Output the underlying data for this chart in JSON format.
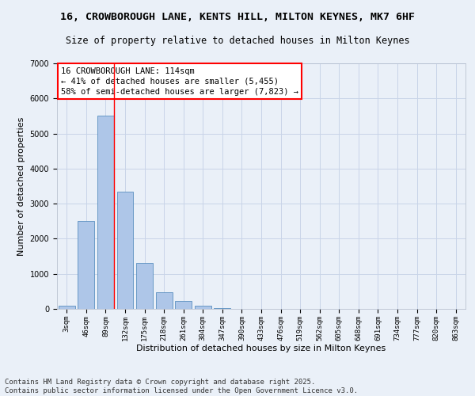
{
  "title_line1": "16, CROWBOROUGH LANE, KENTS HILL, MILTON KEYNES, MK7 6HF",
  "title_line2": "Size of property relative to detached houses in Milton Keynes",
  "xlabel": "Distribution of detached houses by size in Milton Keynes",
  "ylabel": "Number of detached properties",
  "categories": [
    "3sqm",
    "46sqm",
    "89sqm",
    "132sqm",
    "175sqm",
    "218sqm",
    "261sqm",
    "304sqm",
    "347sqm",
    "390sqm",
    "433sqm",
    "476sqm",
    "519sqm",
    "562sqm",
    "605sqm",
    "648sqm",
    "691sqm",
    "734sqm",
    "777sqm",
    "820sqm",
    "863sqm"
  ],
  "values": [
    100,
    2500,
    5500,
    3350,
    1300,
    480,
    220,
    90,
    30,
    0,
    0,
    0,
    0,
    0,
    0,
    0,
    0,
    0,
    0,
    0,
    0
  ],
  "bar_color": "#aec6e8",
  "bar_edge_color": "#5a8fc0",
  "vline_x": 2.43,
  "vline_color": "red",
  "annotation_text": "16 CROWBOROUGH LANE: 114sqm\n← 41% of detached houses are smaller (5,455)\n58% of semi-detached houses are larger (7,823) →",
  "ylim": [
    0,
    7000
  ],
  "yticks": [
    0,
    1000,
    2000,
    3000,
    4000,
    5000,
    6000,
    7000
  ],
  "grid_color": "#c8d4e8",
  "background_color": "#eaf0f8",
  "footnote": "Contains HM Land Registry data © Crown copyright and database right 2025.\nContains public sector information licensed under the Open Government Licence v3.0.",
  "title_fontsize": 9.5,
  "subtitle_fontsize": 8.5,
  "axis_label_fontsize": 8,
  "tick_fontsize": 6.5,
  "annotation_fontsize": 7.5,
  "footnote_fontsize": 6.5
}
